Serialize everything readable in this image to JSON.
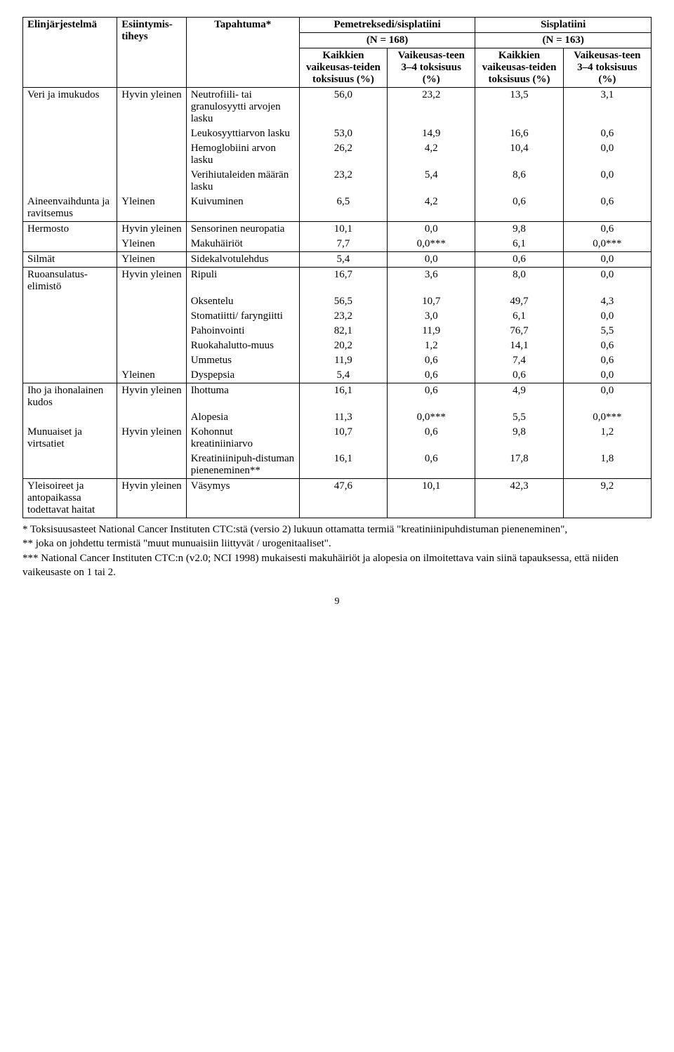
{
  "columns": {
    "c1": "Elinjärjestelmä",
    "c2": "Esiintymis-tiheys",
    "c3": "Tapahtuma*",
    "grpA": "Pemetreksedi/sisplatiini",
    "grpA_n": "(N = 168)",
    "grpB": "Sisplatiini",
    "grpB_n": "(N = 163)",
    "sub_all": "Kaikkien vaikeusas-teiden toksisuus (%)",
    "sub_34": "Vaikeusas-teen 3–4 toksisuus (%)"
  },
  "sections": [
    {
      "rows": [
        {
          "c1": "Veri ja imukudos",
          "c2": "Hyvin yleinen",
          "c3": "Neutrofiili- tai granulosyytti arvojen lasku",
          "a": "56,0",
          "b": "23,2",
          "c": "13,5",
          "d": "3,1"
        },
        {
          "c1": "",
          "c2": "",
          "c3": "Leukosyyttiarvon lasku",
          "a": "53,0",
          "b": "14,9",
          "c": "16,6",
          "d": "0,6"
        },
        {
          "c1": "",
          "c2": "",
          "c3": "Hemoglobiini arvon lasku",
          "a": "26,2",
          "b": "4,2",
          "c": "10,4",
          "d": "0,0"
        },
        {
          "c1": "",
          "c2": "",
          "c3": "Verihiutaleiden määrän lasku",
          "a": "23,2",
          "b": "5,4",
          "c": "8,6",
          "d": "0,0"
        },
        {
          "c1": "Aineenvaihdunta ja ravitsemus",
          "c2": "Yleinen",
          "c3": "Kuivuminen",
          "a": "6,5",
          "b": "4,2",
          "c": "0,6",
          "d": "0,6"
        }
      ]
    },
    {
      "rows": [
        {
          "c1": "Hermosto",
          "c2": "Hyvin yleinen",
          "c3": "Sensorinen neuropatia",
          "a": "10,1",
          "b": "0,0",
          "c": "9,8",
          "d": "0,6"
        },
        {
          "c1": "",
          "c2": "Yleinen",
          "c3": "Makuhäiriöt",
          "a": "7,7",
          "b": "0,0***",
          "c": "6,1",
          "d": "0,0***"
        }
      ]
    },
    {
      "rows": [
        {
          "c1": "Silmät",
          "c2": "Yleinen",
          "c3": "Sidekalvotulehdus",
          "a": "5,4",
          "b": "0,0",
          "c": "0,6",
          "d": "0,0"
        }
      ]
    },
    {
      "rows": [
        {
          "c1": "Ruoansulatus-elimistö",
          "c2": "Hyvin yleinen",
          "c3": "Ripuli",
          "a": "16,7",
          "b": "3,6",
          "c": "8,0",
          "d": "0,0"
        },
        {
          "c1": "",
          "c2": "",
          "c3": "Oksentelu",
          "a": "56,5",
          "b": "10,7",
          "c": "49,7",
          "d": "4,3"
        },
        {
          "c1": "",
          "c2": "",
          "c3": "Stomatiitti/ faryngiitti",
          "a": "23,2",
          "b": "3,0",
          "c": "6,1",
          "d": "0,0"
        },
        {
          "c1": "",
          "c2": "",
          "c3": "Pahoinvointi",
          "a": "82,1",
          "b": "11,9",
          "c": "76,7",
          "d": "5,5"
        },
        {
          "c1": "",
          "c2": "",
          "c3": "Ruokahalutto-muus",
          "a": "20,2",
          "b": "1,2",
          "c": "14,1",
          "d": "0,6"
        },
        {
          "c1": "",
          "c2": "",
          "c3": "Ummetus",
          "a": "11,9",
          "b": "0,6",
          "c": "7,4",
          "d": "0,6"
        },
        {
          "c1": "",
          "c2": "Yleinen",
          "c3": "Dyspepsia",
          "a": "5,4",
          "b": "0,6",
          "c": "0,6",
          "d": "0,0"
        }
      ]
    },
    {
      "rows": [
        {
          "c1": "Iho ja ihonalainen kudos",
          "c2": "Hyvin yleinen",
          "c3": "Ihottuma",
          "a": "16,1",
          "b": "0,6",
          "c": "4,9",
          "d": "0,0"
        },
        {
          "c1": "",
          "c2": "",
          "c3": "Alopesia",
          "a": "11,3",
          "b": "0,0***",
          "c": "5,5",
          "d": "0,0***"
        },
        {
          "c1": "Munuaiset ja virtsatiet",
          "c2": "Hyvin yleinen",
          "c3": "Kohonnut kreatiniiniarvo",
          "a": "10,7",
          "b": "0,6",
          "c": "9,8",
          "d": "1,2"
        },
        {
          "c1": "",
          "c2": "",
          "c3": "Kreatiniinipuh-distuman pieneneminen**",
          "a": "16,1",
          "b": "0,6",
          "c": "17,8",
          "d": "1,8"
        }
      ]
    },
    {
      "rows": [
        {
          "c1": "Yleisoireet ja antopaikassa todettavat haitat",
          "c2": "Hyvin yleinen",
          "c3": "Väsymys",
          "a": "47,6",
          "b": "10,1",
          "c": "42,3",
          "d": "9,2"
        }
      ]
    }
  ],
  "footnotes": [
    "* Toksisuusasteet National Cancer Instituten CTC:stä (versio 2) lukuun ottamatta termiä \"kreatiniinipuhdistuman pieneneminen\",",
    "** joka on johdettu termistä \"muut munuaisiin liittyvät / urogenitaaliset\".",
    "*** National Cancer Instituten CTC:n (v2.0; NCI 1998) mukaisesti makuhäiriöt ja alopesia on ilmoitettava vain siinä tapauksessa, että niiden vaikeusaste on 1 tai 2."
  ],
  "page_number": "9"
}
